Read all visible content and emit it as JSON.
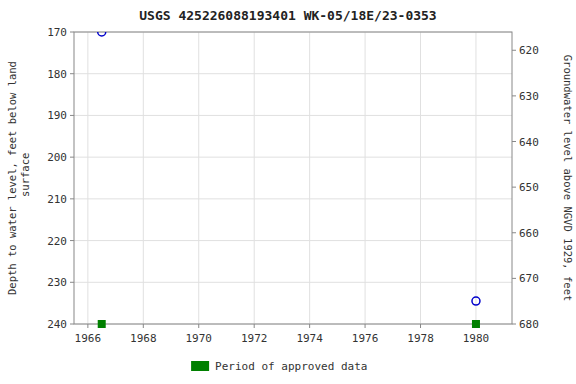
{
  "chart_data": {
    "type": "scatter",
    "title": "USGS 425226088193401 WK-05/18E/23-0353",
    "ylabel": "Depth to water level, feet below land\n surface",
    "y2label": "Groundwater level above NGVD 1929, feet",
    "xlim": [
      1965.5,
      1981.3
    ],
    "xticks": [
      1966,
      1968,
      1970,
      1972,
      1974,
      1976,
      1978,
      1980
    ],
    "ylim": [
      240,
      170
    ],
    "yticks": [
      170,
      180,
      190,
      200,
      210,
      220,
      230,
      240
    ],
    "y2lim": [
      680,
      616
    ],
    "y2ticks": [
      680,
      670,
      660,
      650,
      640,
      630,
      620
    ],
    "grid": true,
    "legend": "bottom",
    "series": [
      {
        "color": "#0000cc",
        "marker": "circle",
        "x": [
          1966.5,
          1980.0
        ],
        "values": [
          170.0,
          234.5
        ]
      },
      {
        "name": "Period of approved data",
        "color": "#008000",
        "marker": "square",
        "x": [
          1966.5,
          1980.0
        ],
        "values": [
          240,
          240
        ]
      }
    ]
  }
}
